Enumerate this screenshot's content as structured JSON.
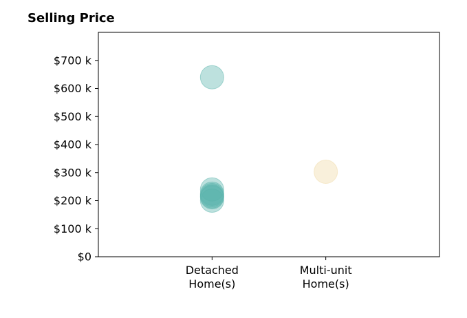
{
  "chart_data": {
    "type": "scatter",
    "title": "Selling Price",
    "xlabel": "",
    "ylabel": "",
    "categories": [
      [
        "Detached",
        "Home(s)"
      ],
      [
        "Multi-unit",
        "Home(s)"
      ]
    ],
    "ylim": [
      0,
      800000
    ],
    "y_ticks": [
      0,
      100000,
      200000,
      300000,
      400000,
      500000,
      600000,
      700000
    ],
    "y_tick_labels": [
      "$0",
      "$100 k",
      "$200 k",
      "$300 k",
      "$400 k",
      "$500 k",
      "$600 k",
      "$700 k"
    ],
    "grid": false,
    "series": [
      {
        "category_index": 0,
        "color": "#5ab4ac",
        "values": [
          640000,
          240000,
          225000,
          220000,
          215000,
          212000,
          200000
        ]
      },
      {
        "category_index": 1,
        "color": "#f0d9a6",
        "values": [
          303000
        ]
      }
    ]
  }
}
